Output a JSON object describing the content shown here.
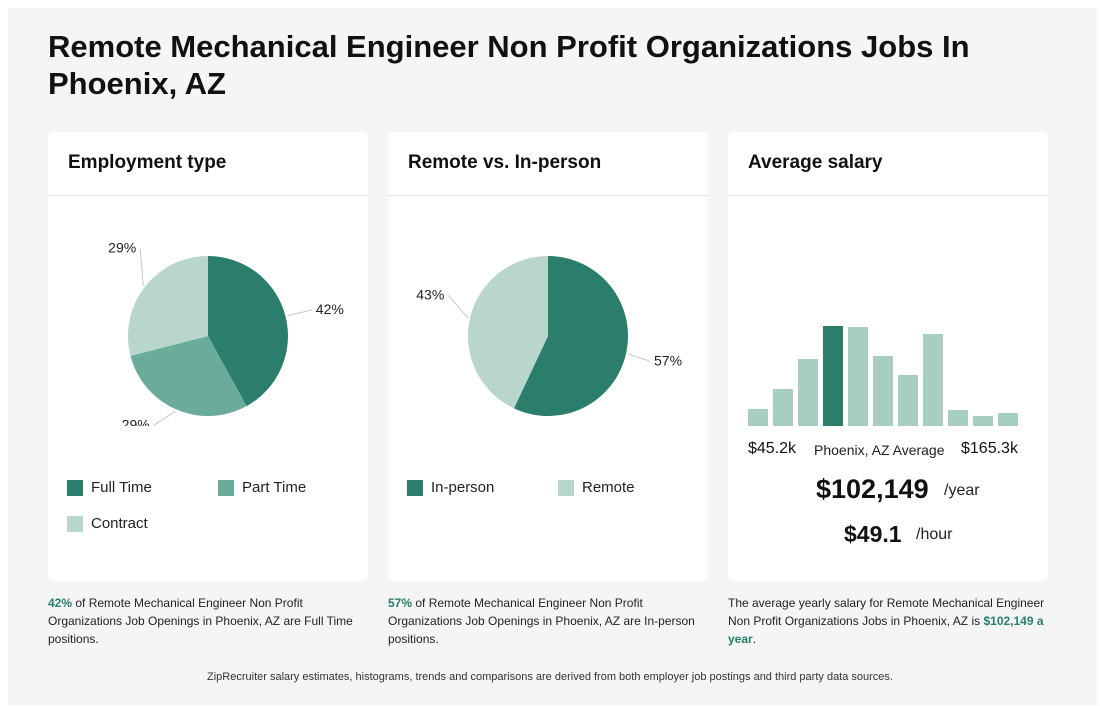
{
  "page": {
    "title": "Remote Mechanical Engineer Non Profit Organizations Jobs In Phoenix, AZ",
    "footer": "ZipRecruiter salary estimates, histograms, trends and comparisons are derived from both employer job postings and third party data sources."
  },
  "colors": {
    "dark": "#2a7e6b",
    "medium": "#6aab9a",
    "light": "#b9d6cd",
    "hist": "#a8cdc2",
    "accent": "#2a7e6b"
  },
  "employment": {
    "heading": "Employment type",
    "labels": [
      "42%",
      "29%",
      "29%"
    ],
    "legend": [
      "Full Time",
      "Part Time",
      "Contract"
    ],
    "caption_pct": "42%",
    "caption_text": " of Remote Mechanical Engineer Non Profit Organizations Job Openings in Phoenix, AZ are Full Time positions."
  },
  "remote": {
    "heading": "Remote vs. In-person",
    "labels": [
      "57%",
      "43%"
    ],
    "legend": [
      "In-person",
      "Remote"
    ],
    "caption_pct": "57%",
    "caption_text": " of Remote Mechanical Engineer Non Profit Organizations Job Openings in Phoenix, AZ are In-person positions."
  },
  "salary": {
    "heading": "Average salary",
    "min_label": "$45.2k",
    "mid_label": "Phoenix, AZ Average",
    "max_label": "$165.3k",
    "yearly": "$102,149",
    "yearly_unit": "/year",
    "hourly": "$49.1",
    "hourly_unit": "/hour",
    "caption_text": "The average yearly salary for Remote Mechanical Engineer Non Profit Organizations Jobs in Phoenix, AZ is ",
    "caption_value": "$102,149 a year",
    "caption_end": "."
  },
  "chart_data": [
    {
      "type": "pie",
      "title": "Employment type",
      "categories": [
        "Full Time",
        "Part Time",
        "Contract"
      ],
      "values": [
        42,
        29,
        29
      ],
      "colors": [
        "#2a7e6b",
        "#6aab9a",
        "#b9d6cd"
      ]
    },
    {
      "type": "pie",
      "title": "Remote vs. In-person",
      "categories": [
        "In-person",
        "Remote"
      ],
      "values": [
        57,
        43
      ],
      "colors": [
        "#2a7e6b",
        "#b9d6cd"
      ]
    },
    {
      "type": "bar",
      "title": "Average salary",
      "x_range_labels": [
        "$45.2k",
        "$165.3k"
      ],
      "values": [
        17,
        37,
        67,
        100,
        99,
        70,
        51,
        92,
        16,
        10,
        13
      ],
      "highlight_index": 3
    }
  ]
}
